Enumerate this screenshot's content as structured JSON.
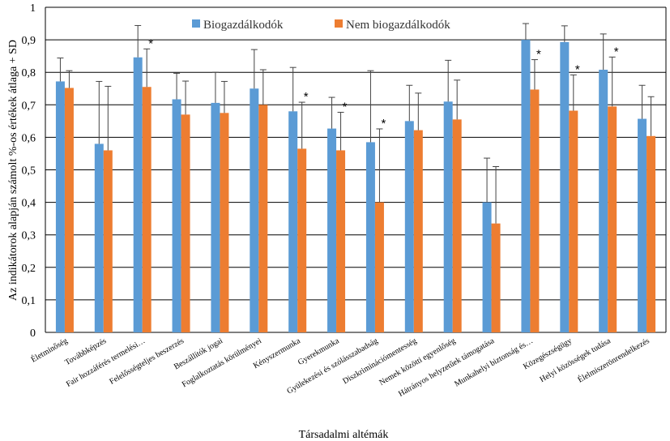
{
  "chart_data": {
    "type": "bar",
    "title": "",
    "xlabel": "Társadalmi  altémák",
    "ylabel": "Az indikátorok  alapján  számolt  %-os értékek  átlaga + SD",
    "ylim": [
      0,
      1
    ],
    "yticks": [
      "0",
      "0,1",
      "0,2",
      "0,3",
      "0,4",
      "0,5",
      "0,6",
      "0,7",
      "0,8",
      "0,9",
      "1"
    ],
    "grid": true,
    "legend_position": "top",
    "categories": [
      "Életminőség",
      "Továbbképzés",
      "Fair hozzáférés termelési…",
      "Felelősségteljes beszerzés",
      "Beszállítók jogai",
      "Foglalkoztatás körülményei",
      "Kényszermunka",
      "Gyerekmunka",
      "Gyülekezési és szólásszabadság",
      "Diszkriminációmentesség",
      "Nemek közötti egyenlőség",
      "Hátrányos helyzetűek támogatása",
      "Munkahelyi biztonság és…",
      "Közegészségügy",
      "Helyi közösségek tudása",
      "Élelmiszerönrendelkezés"
    ],
    "series": [
      {
        "name": "Biogazdálkodók",
        "color": "#5B9BD5",
        "values": [
          0.772,
          0.58,
          0.846,
          0.717,
          0.706,
          0.75,
          0.68,
          0.627,
          0.585,
          0.65,
          0.71,
          0.4,
          0.9,
          0.893,
          0.808,
          0.657
        ],
        "sd": [
          0.072,
          0.192,
          0.098,
          0.08,
          0.094,
          0.12,
          0.135,
          0.096,
          0.22,
          0.11,
          0.127,
          0.136,
          0.05,
          0.05,
          0.11,
          0.103
        ]
      },
      {
        "name": "Nem biogazdálkodók",
        "color": "#ED7D31",
        "values": [
          0.752,
          0.56,
          0.755,
          0.67,
          0.675,
          0.7,
          0.565,
          0.56,
          0.4,
          0.622,
          0.655,
          0.335,
          0.747,
          0.682,
          0.695,
          0.604
        ],
        "sd": [
          0.053,
          0.197,
          0.117,
          0.103,
          0.097,
          0.108,
          0.143,
          0.117,
          0.226,
          0.114,
          0.121,
          0.175,
          0.092,
          0.11,
          0.152,
          0.121
        ]
      }
    ],
    "significance": [
      {
        "category": "Fair hozzáférés termelési…",
        "label": "*"
      },
      {
        "category": "Kényszermunka",
        "label": "*"
      },
      {
        "category": "Gyerekmunka",
        "label": "*"
      },
      {
        "category": "Gyülekezési és szólásszabadság",
        "label": "*"
      },
      {
        "category": "Munkahelyi biztonság és…",
        "label": "*"
      },
      {
        "category": "Közegészségügy",
        "label": "*"
      },
      {
        "category": "Helyi közösségek tudása",
        "label": "*"
      }
    ]
  }
}
